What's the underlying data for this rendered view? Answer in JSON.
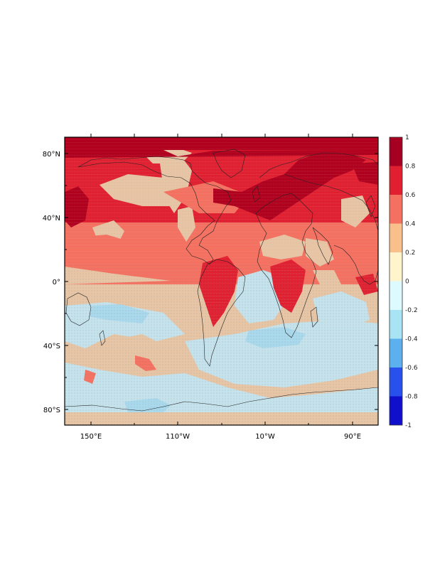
{
  "map": {
    "y_ticks": [
      "80°N",
      "40°N",
      "0°",
      "40°S",
      "80°S"
    ],
    "x_ticks": [
      "150°E",
      "110°W",
      "10°W",
      "90°E"
    ],
    "colorbar": {
      "labels": [
        "1",
        "0.8",
        "0.6",
        "0.4",
        "0.2",
        "0",
        "-0.2",
        "-0.4",
        "-0.6",
        "-0.8",
        "-1"
      ],
      "colors": [
        "#a50021",
        "#e02030",
        "#f47060",
        "#f9c08c",
        "#fff4cc",
        "#ddfaff",
        "#a8e4f4",
        "#5cb0ee",
        "#2850ec",
        "#1010cc"
      ]
    },
    "palette": {
      "arctic": "#b0001e",
      "high": "#e02030",
      "mid": "#f47060",
      "tan": "#e6c4a4",
      "lightblue": "#c4e2ec",
      "blue": "#a8d8ec",
      "coast": "#222222",
      "stipple": "#9a9a9a"
    }
  }
}
